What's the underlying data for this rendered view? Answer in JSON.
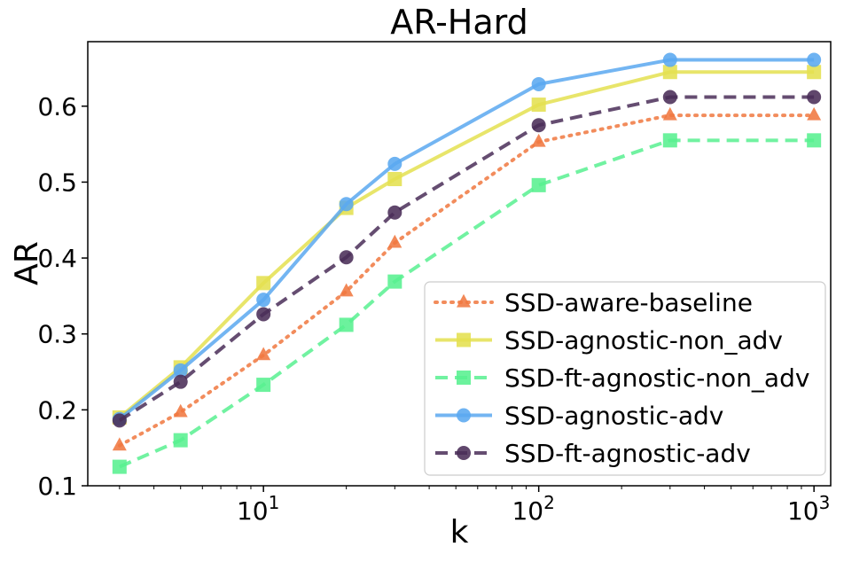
{
  "chart_data": {
    "type": "line",
    "title": "AR-Hard",
    "xlabel": "k",
    "ylabel": "AR",
    "xscale": "log",
    "xlim": [
      2.3,
      1150
    ],
    "ylim": [
      0.1,
      0.685
    ],
    "x": [
      3,
      5,
      10,
      20,
      30,
      100,
      300,
      1000
    ],
    "xticks": [
      {
        "value": 10,
        "base": "10",
        "exp": "1"
      },
      {
        "value": 100,
        "base": "10",
        "exp": "2"
      },
      {
        "value": 1000,
        "base": "10",
        "exp": "3"
      }
    ],
    "yticks": [
      {
        "value": 0.1,
        "label": "0.1"
      },
      {
        "value": 0.2,
        "label": "0.2"
      },
      {
        "value": 0.3,
        "label": "0.3"
      },
      {
        "value": 0.4,
        "label": "0.4"
      },
      {
        "value": 0.5,
        "label": "0.5"
      },
      {
        "value": 0.6,
        "label": "0.6"
      }
    ],
    "grid": false,
    "legend_position": "lower-right",
    "series": [
      {
        "name": "SSD-aware-baseline",
        "color": "#f07840",
        "marker": "triangle",
        "dash": "dotted",
        "values": [
          0.153,
          0.197,
          0.272,
          0.356,
          0.42,
          0.553,
          0.588,
          0.588
        ]
      },
      {
        "name": "SSD-agnostic-non_adv",
        "color": "#e4e050",
        "marker": "square",
        "dash": "solid",
        "values": [
          0.19,
          0.256,
          0.367,
          0.466,
          0.504,
          0.602,
          0.645,
          0.645
        ]
      },
      {
        "name": "SSD-ft-agnostic-non_adv",
        "color": "#58f090",
        "marker": "square",
        "dash": "dashed",
        "values": [
          0.125,
          0.16,
          0.233,
          0.312,
          0.369,
          0.496,
          0.555,
          0.555
        ]
      },
      {
        "name": "SSD-agnostic-adv",
        "color": "#5aa8f0",
        "marker": "circle",
        "dash": "solid",
        "values": [
          0.188,
          0.252,
          0.345,
          0.471,
          0.524,
          0.629,
          0.661,
          0.661
        ]
      },
      {
        "name": "SSD-ft-agnostic-adv",
        "color": "#4a2e58",
        "marker": "circle",
        "dash": "dashed",
        "values": [
          0.186,
          0.237,
          0.326,
          0.401,
          0.46,
          0.575,
          0.612,
          0.612
        ]
      }
    ]
  }
}
